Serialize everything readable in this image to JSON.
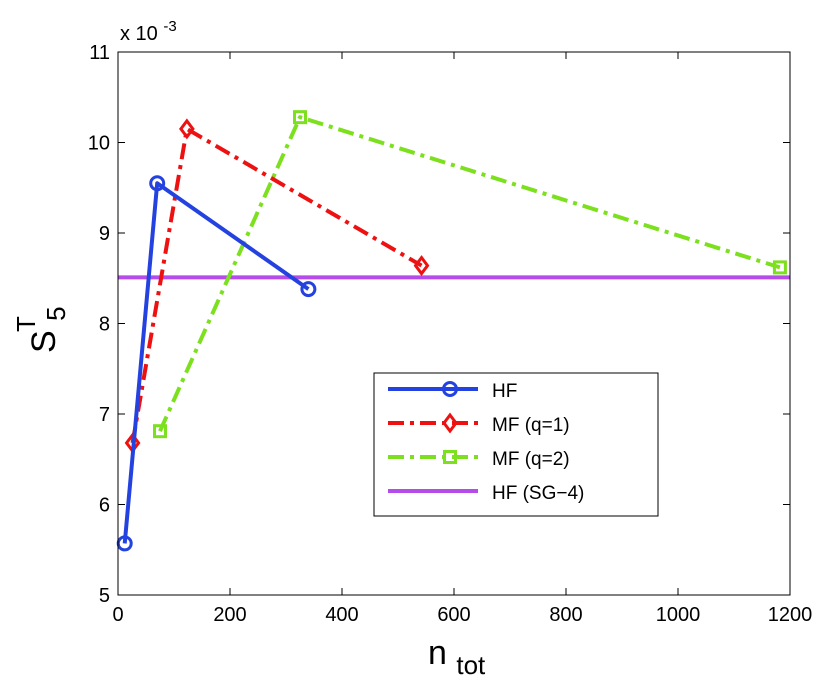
{
  "chart_data": {
    "type": "line",
    "title": "",
    "xlabel": {
      "main": "n",
      "sub": "tot"
    },
    "ylabel": {
      "main": "S",
      "sub": "5",
      "sup": "T"
    },
    "y_scale_note": "x 10",
    "y_scale_exponent": "-3",
    "xlim": [
      0,
      1200
    ],
    "ylim": [
      5,
      11
    ],
    "xticks": [
      0,
      200,
      400,
      600,
      800,
      1000,
      1200
    ],
    "yticks": [
      5,
      6,
      7,
      8,
      9,
      10,
      11
    ],
    "grid": false,
    "legend_position": "lower-right",
    "series": [
      {
        "name": "HF",
        "color": "#2442e0",
        "style": "solid",
        "marker": "circle",
        "x": [
          12,
          70,
          340
        ],
        "y": [
          5.57,
          9.55,
          8.38
        ]
      },
      {
        "name": "MF (q=1)",
        "color": "#ee1111",
        "style": "dashdot",
        "marker": "diamond",
        "x": [
          26,
          123,
          542
        ],
        "y": [
          6.68,
          10.15,
          8.64
        ]
      },
      {
        "name": "MF (q=2)",
        "color": "#7de01e",
        "style": "dashdot",
        "marker": "square",
        "x": [
          75,
          325,
          1182
        ],
        "y": [
          6.81,
          10.28,
          8.62
        ]
      },
      {
        "name": "HF (SG−4)",
        "color": "#b54be8",
        "style": "solid",
        "marker": "none",
        "x": [
          0,
          1200
        ],
        "y": [
          8.51,
          8.51
        ]
      }
    ]
  }
}
